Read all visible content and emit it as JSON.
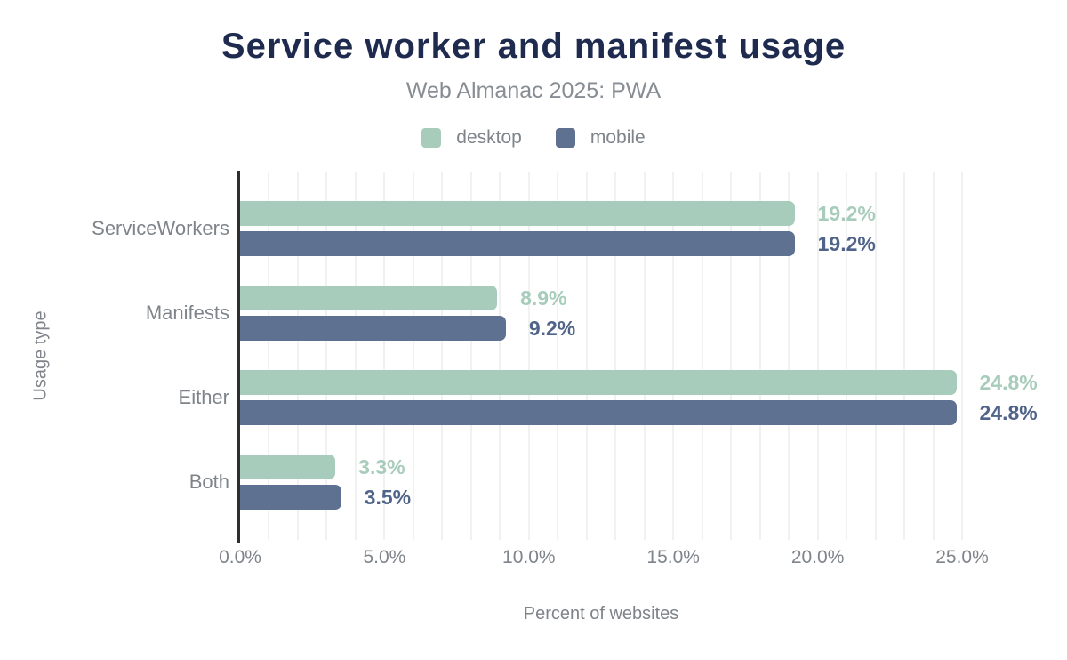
{
  "palette": {
    "background": "#ffffff",
    "title_navy": "#1e2b4f",
    "desktop_green": "#a8ccbb",
    "mobile_blue": "#5e7190",
    "mobile_label_blue": "#50648a",
    "text_gray": "#7e848a",
    "gridline_gray": "#f0f1f1",
    "axis_line_dark": "#2e2e2e"
  },
  "chart_data": {
    "type": "bar",
    "orientation": "horizontal",
    "title": "Service worker and manifest usage",
    "subtitle": "Web Almanac 2025: PWA",
    "xlabel": "Percent of websites",
    "ylabel": "Usage type",
    "xlim": [
      0,
      25
    ],
    "grid": {
      "visible": true,
      "step": 1,
      "color": "#f0f1f1"
    },
    "legend": {
      "position": "top",
      "entries": [
        "desktop",
        "mobile"
      ]
    },
    "categories": [
      "ServiceWorkers",
      "Manifests",
      "Either",
      "Both"
    ],
    "series": [
      {
        "name": "desktop",
        "color": "#a8ccbb",
        "label_color": "#a8ccbb",
        "values": [
          19.2,
          8.9,
          24.8,
          3.3
        ],
        "data_labels": [
          "19.2%",
          "8.9%",
          "24.8%",
          "3.3%"
        ]
      },
      {
        "name": "mobile",
        "color": "#5e7190",
        "label_color": "#50648a",
        "values": [
          19.2,
          9.2,
          24.8,
          3.5
        ],
        "data_labels": [
          "19.2%",
          "9.2%",
          "24.8%",
          "3.5%"
        ]
      }
    ],
    "x_ticks": [
      {
        "value": 0,
        "label": "0.0%"
      },
      {
        "value": 5,
        "label": "5.0%"
      },
      {
        "value": 10,
        "label": "10.0%"
      },
      {
        "value": 15,
        "label": "15.0%"
      },
      {
        "value": 20,
        "label": "20.0%"
      },
      {
        "value": 25,
        "label": "25.0%"
      }
    ]
  }
}
